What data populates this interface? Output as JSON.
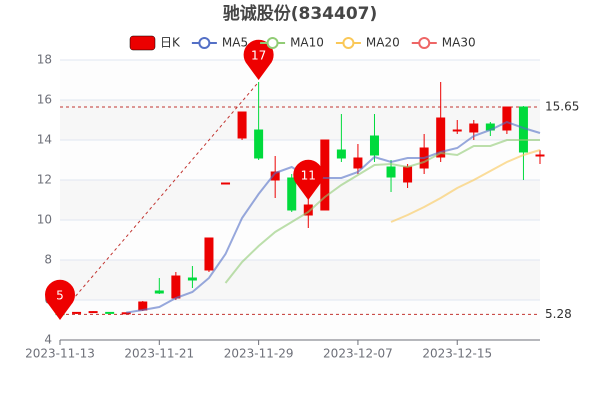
{
  "chart_data": {
    "type": "candlestick",
    "title": "驰诚股份(834407)",
    "categories": [
      "2023-11-13",
      null,
      null,
      null,
      null,
      null,
      "2023-11-21",
      null,
      null,
      null,
      null,
      null,
      "2023-11-29",
      null,
      null,
      null,
      null,
      null,
      "2023-12-07",
      null,
      null,
      null,
      null,
      null,
      "2023-12-15",
      null,
      null,
      null,
      null,
      null
    ],
    "candles": {
      "name": "日K",
      "up_color": "#ec0000",
      "down_color": "#00da3c",
      "open": [
        5.32,
        5.33,
        5.38,
        5.38,
        5.33,
        5.5,
        6.45,
        6.1,
        7.1,
        7.5,
        11.85,
        14.1,
        14.5,
        12.0,
        12.1,
        10.25,
        10.5,
        13.5,
        12.6,
        14.2,
        12.65,
        11.9,
        12.6,
        13.15,
        14.45,
        14.4,
        14.8,
        14.5,
        15.65,
        13.2
      ],
      "close": [
        5.3,
        5.38,
        5.42,
        5.35,
        5.36,
        5.9,
        6.35,
        7.2,
        7.0,
        9.1,
        11.85,
        15.4,
        13.1,
        12.4,
        10.5,
        10.75,
        14.0,
        13.1,
        13.1,
        13.25,
        12.15,
        12.65,
        13.6,
        15.1,
        14.5,
        14.8,
        14.5,
        15.65,
        13.4,
        13.25
      ],
      "low": [
        5.28,
        5.3,
        5.36,
        5.33,
        5.31,
        5.45,
        6.3,
        6.0,
        6.6,
        7.4,
        11.85,
        14.0,
        13.0,
        11.1,
        10.4,
        9.6,
        10.5,
        12.9,
        12.3,
        12.9,
        11.4,
        11.6,
        12.3,
        12.9,
        14.3,
        14.0,
        14.2,
        14.3,
        12.0,
        12.8
      ],
      "high": [
        5.35,
        5.4,
        5.44,
        5.4,
        5.38,
        5.95,
        7.1,
        7.4,
        7.7,
        9.1,
        11.85,
        15.4,
        16.9,
        13.2,
        12.3,
        11.2,
        14.0,
        15.3,
        13.8,
        15.3,
        13.0,
        12.8,
        14.3,
        16.9,
        15.0,
        15.0,
        14.9,
        15.65,
        15.7,
        13.5
      ]
    },
    "series": [
      {
        "name": "MA5",
        "color": "#5470c6",
        "values": [
          null,
          null,
          null,
          null,
          5.37,
          5.5,
          5.65,
          6.1,
          6.4,
          7.1,
          8.3,
          10.1,
          11.3,
          12.35,
          12.65,
          12.15,
          12.1,
          12.1,
          12.4,
          13.15,
          12.9,
          13.1,
          13.1,
          13.4,
          13.6,
          14.2,
          14.5,
          14.9,
          14.6,
          14.35
        ]
      },
      {
        "name": "MA10",
        "color": "#91cc75",
        "values": [
          null,
          null,
          null,
          null,
          null,
          null,
          null,
          null,
          null,
          null,
          6.85,
          7.9,
          8.7,
          9.4,
          9.9,
          10.4,
          11.15,
          11.75,
          12.25,
          12.75,
          12.8,
          12.65,
          12.9,
          13.35,
          13.25,
          13.7,
          13.7,
          14.0,
          14.0,
          14.0
        ]
      },
      {
        "name": "MA20",
        "color": "#fac858",
        "values": [
          null,
          null,
          null,
          null,
          null,
          null,
          null,
          null,
          null,
          null,
          null,
          null,
          null,
          null,
          null,
          null,
          null,
          null,
          null,
          null,
          9.9,
          10.25,
          10.65,
          11.1,
          11.6,
          12.0,
          12.45,
          12.9,
          13.25,
          13.5
        ]
      },
      {
        "name": "MA30",
        "color": "#ee6666",
        "values": [
          null,
          null,
          null,
          null,
          null,
          null,
          null,
          null,
          null,
          null,
          null,
          null,
          null,
          null,
          null,
          null,
          null,
          null,
          null,
          null,
          null,
          null,
          null,
          null,
          null,
          null,
          null,
          null,
          null,
          null
        ]
      }
    ],
    "mark_points": [
      {
        "category_index": 0,
        "value": 5
      },
      {
        "category_index": 12,
        "value": 17
      },
      {
        "category_index": 15,
        "value": 11
      }
    ],
    "mark_lines": [
      15.65,
      5.28
    ],
    "ylim": [
      4,
      18
    ],
    "yticks": [
      4,
      6,
      8,
      10,
      12,
      14,
      16,
      18
    ],
    "grid": true
  }
}
